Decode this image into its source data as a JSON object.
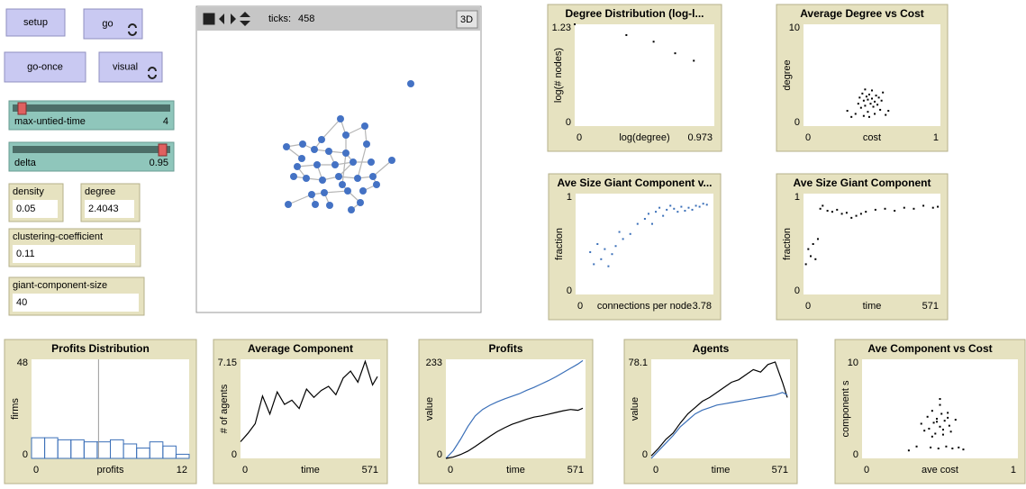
{
  "buttons": [
    {
      "label": "setup",
      "forever": false
    },
    {
      "label": "go",
      "forever": true
    },
    {
      "label": "go-once",
      "forever": false
    },
    {
      "label": "visual",
      "forever": true
    }
  ],
  "sliders": [
    {
      "label": "max-untied-time",
      "value": 4
    },
    {
      "label": "delta",
      "value": 0.95
    }
  ],
  "monitors": [
    {
      "label": "density",
      "value": 0.05
    },
    {
      "label": "degree",
      "value": 2.4043
    },
    {
      "label": "clustering-coefficient",
      "value": 0.11
    },
    {
      "label": "giant-component-size",
      "value": 40
    }
  ],
  "view": {
    "ticks_label": "ticks:",
    "ticks": 458,
    "button_3d": "3D"
  },
  "plots": [
    {
      "type": "scatter",
      "title": "Degree Distribution (log-l...",
      "xlabel": "log(degree)",
      "ylabel": "log(# nodes)",
      "xlim": [
        0,
        0.973
      ],
      "ylim": [
        0,
        1.23
      ],
      "series": [
        {
          "color": "#000000",
          "x": [
            0,
            0.36,
            0.55,
            0.7,
            0.83
          ],
          "values": [
            1.23,
            1.1,
            1.02,
            0.88,
            0.79
          ]
        }
      ]
    },
    {
      "type": "scatter",
      "title": "Average Degree vs Cost",
      "xlabel": "cost",
      "ylabel": "degree",
      "xlim": [
        0,
        1
      ],
      "ylim": [
        0,
        10
      ],
      "series": [
        {
          "color": "#000000",
          "x": [
            0.32,
            0.35,
            0.38,
            0.4,
            0.41,
            0.42,
            0.43,
            0.44,
            0.45,
            0.45,
            0.46,
            0.47,
            0.47,
            0.48,
            0.49,
            0.5,
            0.5,
            0.51,
            0.52,
            0.53,
            0.54,
            0.55,
            0.56,
            0.57,
            0.58,
            0.6,
            0.62,
            0.44,
            0.48,
            0.52
          ],
          "values": [
            1.5,
            0.9,
            1.2,
            2.2,
            2.8,
            1.8,
            3.2,
            2.5,
            2.0,
            3.6,
            2.9,
            1.4,
            2.6,
            3.1,
            2.2,
            2.7,
            3.5,
            1.9,
            2.4,
            3.0,
            2.1,
            2.8,
            1.6,
            2.5,
            3.3,
            1.1,
            1.5,
            1.0,
            0.9,
            1.2
          ]
        }
      ]
    },
    {
      "type": "scatter",
      "title": "Ave Size Giant Component v...",
      "xlabel": "connections per node",
      "ylabel": "fraction",
      "xlim": [
        0,
        3.78
      ],
      "ylim": [
        0,
        1
      ],
      "series": [
        {
          "color": "#3a6fb8",
          "x": [
            0.4,
            0.5,
            0.6,
            0.7,
            0.8,
            0.9,
            1.0,
            1.1,
            1.2,
            1.3,
            1.5,
            1.7,
            1.9,
            2.0,
            2.2,
            2.3,
            2.4,
            2.5,
            2.6,
            2.7,
            2.8,
            2.9,
            3.0,
            3.1,
            3.2,
            3.3,
            3.4,
            3.5,
            3.6,
            2.1
          ],
          "values": [
            0.42,
            0.3,
            0.5,
            0.35,
            0.45,
            0.28,
            0.4,
            0.48,
            0.62,
            0.55,
            0.6,
            0.7,
            0.75,
            0.8,
            0.82,
            0.86,
            0.78,
            0.84,
            0.88,
            0.85,
            0.82,
            0.87,
            0.83,
            0.86,
            0.84,
            0.88,
            0.87,
            0.9,
            0.89,
            0.7
          ]
        }
      ]
    },
    {
      "type": "scatter",
      "title": "Ave Size Giant Component",
      "xlabel": "time",
      "ylabel": "fraction",
      "xlim": [
        0,
        571
      ],
      "ylim": [
        0,
        1
      ],
      "series": [
        {
          "color": "#000000",
          "x": [
            10,
            20,
            30,
            40,
            50,
            60,
            70,
            80,
            100,
            120,
            140,
            160,
            180,
            200,
            220,
            240,
            260,
            300,
            340,
            380,
            420,
            460,
            500,
            540,
            560
          ],
          "values": [
            0.3,
            0.45,
            0.38,
            0.5,
            0.35,
            0.55,
            0.85,
            0.88,
            0.83,
            0.82,
            0.84,
            0.8,
            0.81,
            0.76,
            0.78,
            0.8,
            0.82,
            0.84,
            0.85,
            0.83,
            0.86,
            0.85,
            0.88,
            0.86,
            0.87
          ]
        }
      ]
    },
    {
      "type": "histogram",
      "title": "Profits Distribution",
      "xlabel": "profits",
      "ylabel": "firms",
      "xlim": [
        0,
        12
      ],
      "ylim": [
        0,
        48
      ],
      "color": "#3a6fb8",
      "bins": [
        0,
        1,
        2,
        3,
        4,
        5,
        6,
        7,
        8,
        9,
        10,
        11,
        12
      ],
      "counts": [
        10,
        10,
        9,
        9,
        8,
        8,
        9,
        7,
        5,
        8,
        6,
        2
      ],
      "marker_x": 5.1
    },
    {
      "type": "line",
      "title": "Average Component",
      "xlabel": "time",
      "ylabel": "# of agents",
      "xlim": [
        0,
        571
      ],
      "ylim": [
        0,
        7.15
      ],
      "x": [
        0,
        30,
        60,
        90,
        120,
        150,
        180,
        210,
        240,
        270,
        300,
        330,
        360,
        390,
        420,
        450,
        480,
        510,
        540,
        560
      ],
      "series": [
        {
          "color": "#000000",
          "values": [
            1.2,
            1.8,
            2.5,
            4.5,
            3.2,
            4.8,
            3.9,
            4.2,
            3.6,
            5.0,
            4.4,
            4.9,
            5.2,
            4.6,
            5.8,
            6.3,
            5.5,
            7.0,
            5.3,
            5.9
          ]
        }
      ]
    },
    {
      "type": "line",
      "title": "Profits",
      "xlabel": "time",
      "ylabel": "value",
      "xlim": [
        0,
        571
      ],
      "ylim": [
        0,
        233
      ],
      "x": [
        0,
        30,
        60,
        90,
        120,
        150,
        180,
        210,
        240,
        270,
        300,
        330,
        360,
        390,
        420,
        450,
        480,
        510,
        540,
        560
      ],
      "series": [
        {
          "color": "#3a6fb8",
          "values": [
            0,
            18,
            45,
            75,
            100,
            115,
            125,
            133,
            140,
            146,
            152,
            160,
            167,
            175,
            183,
            192,
            202,
            212,
            222,
            230
          ]
        },
        {
          "color": "#000000",
          "values": [
            0,
            3,
            9,
            17,
            28,
            40,
            52,
            63,
            72,
            80,
            86,
            92,
            97,
            100,
            104,
            108,
            112,
            115,
            113,
            118
          ]
        }
      ]
    },
    {
      "type": "line",
      "title": "Agents",
      "xlabel": "time",
      "ylabel": "value",
      "xlim": [
        0,
        571
      ],
      "ylim": [
        0,
        78.1
      ],
      "x": [
        0,
        30,
        60,
        90,
        120,
        150,
        180,
        210,
        240,
        270,
        300,
        330,
        360,
        390,
        420,
        450,
        480,
        510,
        540,
        560
      ],
      "series": [
        {
          "color": "#000000",
          "values": [
            2,
            8,
            15,
            20,
            28,
            35,
            40,
            45,
            48,
            52,
            56,
            60,
            62,
            66,
            70,
            68,
            74,
            76,
            60,
            48
          ]
        },
        {
          "color": "#3a6fb8",
          "values": [
            0,
            6,
            12,
            18,
            25,
            30,
            35,
            38,
            40,
            42,
            43,
            44,
            45,
            46,
            47,
            48,
            49,
            50,
            52,
            50
          ]
        }
      ]
    },
    {
      "type": "scatter",
      "title": "Ave Component vs Cost",
      "xlabel": "ave cost",
      "ylabel": "component s",
      "xlim": [
        0,
        1
      ],
      "ylim": [
        0,
        10
      ],
      "series": [
        {
          "color": "#000000",
          "x": [
            0.3,
            0.35,
            0.38,
            0.4,
            0.42,
            0.43,
            0.44,
            0.45,
            0.46,
            0.47,
            0.48,
            0.49,
            0.5,
            0.5,
            0.51,
            0.52,
            0.53,
            0.54,
            0.55,
            0.56,
            0.57,
            0.58,
            0.6,
            0.62,
            0.65,
            0.45,
            0.5,
            0.55,
            0.48,
            0.52
          ],
          "values": [
            0.8,
            1.2,
            3.5,
            2.8,
            4.2,
            3.0,
            1.1,
            4.8,
            3.6,
            2.5,
            4.0,
            1.0,
            3.2,
            5.4,
            4.5,
            2.9,
            3.8,
            1.2,
            4.1,
            3.3,
            2.7,
            1.0,
            3.9,
            1.1,
            0.9,
            2.2,
            6.0,
            4.6,
            3.7,
            2.4
          ]
        }
      ]
    }
  ]
}
